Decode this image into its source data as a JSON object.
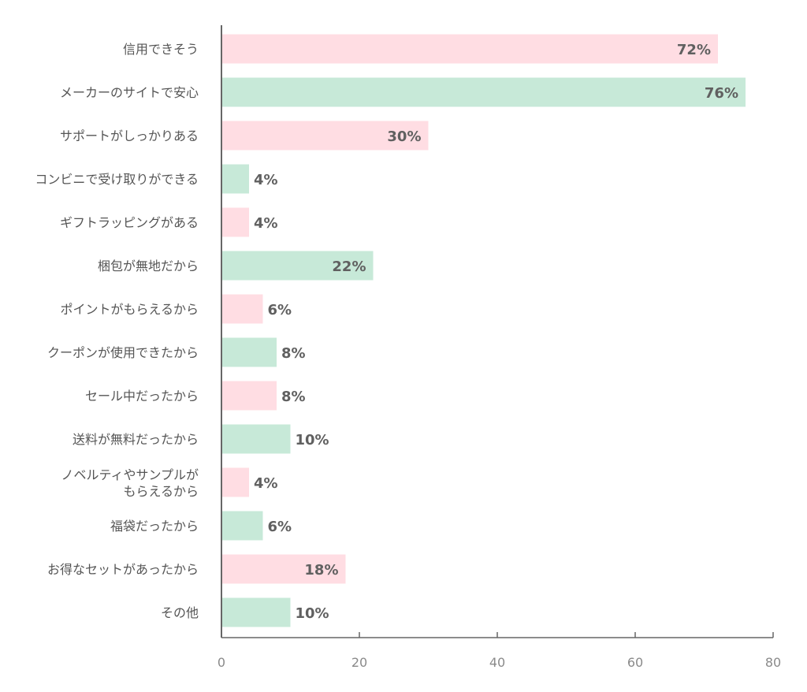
{
  "chart_data": {
    "type": "bar",
    "orientation": "horizontal",
    "title": "",
    "xlabel": "",
    "ylabel": "",
    "xlim": [
      0,
      80
    ],
    "x_ticks": [
      "0",
      "20",
      "40",
      "60",
      "80"
    ],
    "grid": false,
    "categories": [
      "信用できそう",
      "メーカーのサイトで安心",
      "サポートがしっかりある",
      "コンビニで受け取りができる",
      "ギフトラッピングがある",
      "梱包が無地だから",
      "ポイントがもらえるから",
      "クーポンが使用できたから",
      "セール中だったから",
      "送料が無料だったから",
      "ノベルティやサンプルが\nもらえるから",
      "福袋だったから",
      "お得なセットがあったから",
      "その他"
    ],
    "values": [
      72,
      76,
      30,
      4,
      4,
      22,
      6,
      8,
      8,
      10,
      4,
      6,
      18,
      10
    ],
    "data_labels": [
      "72%",
      "76%",
      "30%",
      "4%",
      "4%",
      "22%",
      "6%",
      "8%",
      "8%",
      "10%",
      "4%",
      "6%",
      "18%",
      "10%"
    ],
    "colors": {
      "pink": "#ffdde3",
      "green": "#c7e9d8",
      "axis": "#666666"
    }
  }
}
